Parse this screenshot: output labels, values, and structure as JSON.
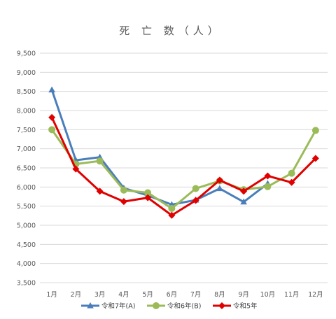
{
  "chart_data": {
    "type": "line",
    "title": "死 亡 数（人）",
    "categories": [
      "1月",
      "2月",
      "3月",
      "4月",
      "5月",
      "6月",
      "7月",
      "8月",
      "9月",
      "10月",
      "11月",
      "12月"
    ],
    "ylim": [
      3500,
      9500
    ],
    "yticks": [
      3500,
      4000,
      4500,
      5000,
      5500,
      6000,
      6500,
      7000,
      7500,
      8000,
      8500,
      9000,
      9500
    ],
    "ytick_labels": [
      "3,500",
      "4,000",
      "4,500",
      "5,000",
      "5,500",
      "6,000",
      "6,500",
      "7,000",
      "7,500",
      "8,000",
      "8,500",
      "9,000",
      "9,500"
    ],
    "grid": true,
    "legend_position": "bottom",
    "series": [
      {
        "name": "令和7年(A)",
        "color": "#4a7ebb",
        "marker": "triangle",
        "values": [
          8540,
          6700,
          6780,
          5970,
          5780,
          5540,
          5660,
          5960,
          5610,
          6090,
          null,
          null
        ]
      },
      {
        "name": "令和6年(B)",
        "color": "#9bbb59",
        "marker": "circle",
        "values": [
          7500,
          6600,
          6680,
          5920,
          5850,
          5440,
          5960,
          6160,
          5930,
          6010,
          6360,
          7480
        ]
      },
      {
        "name": "令和5年",
        "color": "#e00000",
        "marker": "diamond",
        "values": [
          7820,
          6470,
          5890,
          5620,
          5720,
          5260,
          5650,
          6180,
          5890,
          6290,
          6120,
          6750
        ]
      }
    ]
  }
}
